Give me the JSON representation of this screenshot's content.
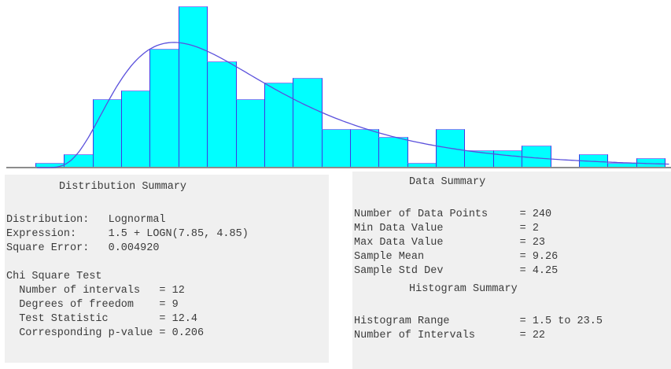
{
  "chart_data": {
    "type": "bar",
    "title": "",
    "xlabel": "",
    "ylabel": "",
    "histogram_range": [
      1.5,
      23.5
    ],
    "num_intervals": 22,
    "bin_width": 1.0,
    "bin_midpoints": [
      2,
      3,
      4,
      5,
      6,
      7,
      8,
      9,
      10,
      11,
      12,
      13,
      14,
      15,
      16,
      17,
      18,
      19,
      20,
      21,
      22,
      23
    ],
    "frequencies": [
      1,
      3,
      16,
      18,
      28,
      38,
      25,
      16,
      20,
      21,
      9,
      9,
      7,
      1,
      9,
      4,
      4,
      5,
      0,
      3,
      1,
      2
    ],
    "total_points": 240,
    "legend": "none",
    "grid": false,
    "fit": {
      "distribution": "Lognormal",
      "expression": "1.5 + LOGN(7.85, 4.85)",
      "offset": 1.5,
      "logn_mean": 7.85,
      "logn_std": 4.85
    },
    "colors": {
      "bar_fill": "#00ffff",
      "bar_border": "#4038e2",
      "curve": "#5a50dc",
      "axis": "#8c8c8c",
      "panel_bg": "#f0f0f0",
      "text": "#3b3b3b"
    }
  },
  "panels": {
    "distribution": {
      "title": "Distribution Summary",
      "rows": [
        {
          "label": "Distribution:",
          "value": "Lognormal"
        },
        {
          "label": "Expression:",
          "value": "1.5 + LOGN(7.85, 4.85)"
        },
        {
          "label": "Square Error:",
          "value": "0.004920"
        }
      ],
      "chi_square": {
        "heading": "Chi Square Test",
        "rows": [
          {
            "label": "Number of intervals",
            "value": "= 12"
          },
          {
            "label": "Degrees of freedom",
            "value": "= 9"
          },
          {
            "label": "Test Statistic",
            "value": "= 12.4"
          },
          {
            "label": "Corresponding p-value",
            "value": "= 0.206"
          }
        ]
      }
    },
    "data_summary": {
      "title": "Data Summary",
      "rows": [
        {
          "label": "Number of Data Points",
          "value": "= 240"
        },
        {
          "label": "Min Data Value",
          "value": "= 2"
        },
        {
          "label": "Max Data Value",
          "value": "= 23"
        },
        {
          "label": "Sample Mean",
          "value": "= 9.26"
        },
        {
          "label": "Sample Std Dev",
          "value": "= 4.25"
        }
      ]
    },
    "histogram_summary": {
      "title": "Histogram Summary",
      "rows": [
        {
          "label": "Histogram Range",
          "value": "= 1.5 to 23.5"
        },
        {
          "label": "Number of Intervals",
          "value": "= 22"
        }
      ]
    }
  }
}
